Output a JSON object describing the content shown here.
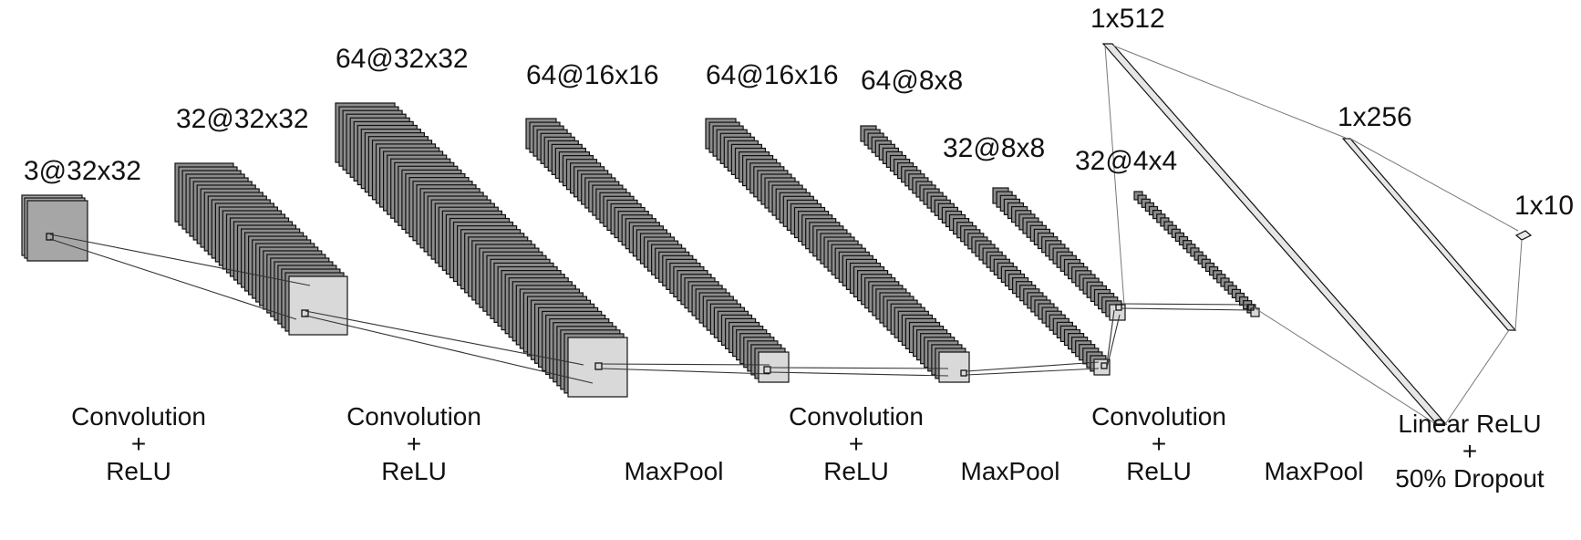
{
  "layers": [
    {
      "id": "input",
      "label": "3@32x32",
      "channels": 3
    },
    {
      "id": "conv1",
      "label": "32@32x32",
      "channels": 32
    },
    {
      "id": "conv2",
      "label": "64@32x32",
      "channels": 64
    },
    {
      "id": "pool1",
      "label": "64@16x16",
      "channels": 64
    },
    {
      "id": "conv3",
      "label": "64@16x16",
      "channels": 64
    },
    {
      "id": "pool2",
      "label": "64@8x8",
      "channels": 64
    },
    {
      "id": "conv4",
      "label": "32@8x8",
      "channels": 32
    },
    {
      "id": "pool3",
      "label": "32@4x4",
      "channels": 32
    },
    {
      "id": "fc1",
      "label": "1x512"
    },
    {
      "id": "fc2",
      "label": "1x256"
    },
    {
      "id": "fc3",
      "label": "1x10"
    }
  ],
  "operations": [
    {
      "id": "op-conv1",
      "lines": [
        "Convolution",
        "+",
        "ReLU"
      ]
    },
    {
      "id": "op-conv2",
      "lines": [
        "Convolution",
        "+",
        "ReLU"
      ]
    },
    {
      "id": "op-pool1",
      "lines": [
        "MaxPool"
      ]
    },
    {
      "id": "op-conv3",
      "lines": [
        "Convolution",
        "+",
        "ReLU"
      ]
    },
    {
      "id": "op-pool2",
      "lines": [
        "MaxPool"
      ]
    },
    {
      "id": "op-conv4",
      "lines": [
        "Convolution",
        "+",
        "ReLU"
      ]
    },
    {
      "id": "op-pool3",
      "lines": [
        "MaxPool"
      ]
    },
    {
      "id": "op-linear",
      "lines": [
        "Linear ReLU",
        "+",
        "50% Dropout"
      ]
    }
  ],
  "colors": {
    "stack_fill": "#8c8c8c",
    "input_fill": "#a6a6a6",
    "front_fill": "#d9d9d9",
    "outline": "#111111",
    "connector": "#777777"
  }
}
